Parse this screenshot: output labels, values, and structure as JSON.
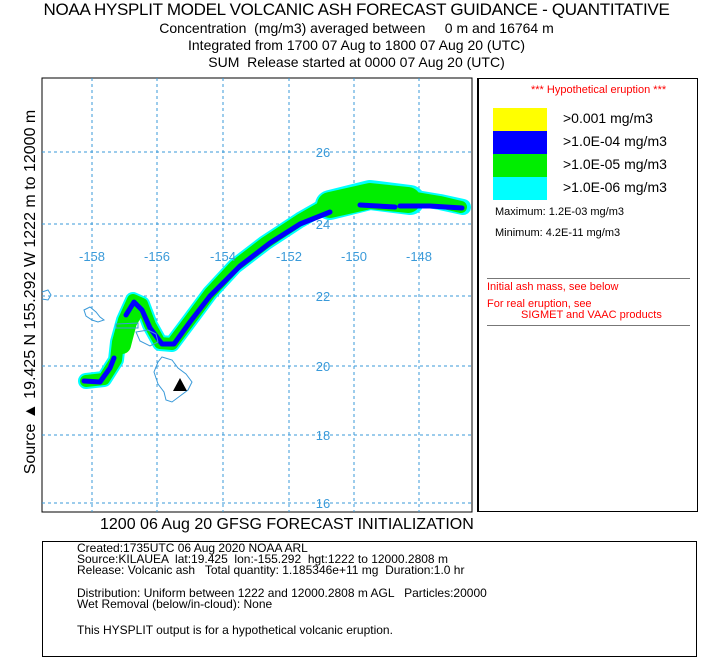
{
  "header": {
    "title": "NOAA HYSPLIT MODEL VOLCANIC ASH FORECAST GUIDANCE - QUANTITATIVE",
    "line1": "Concentration  (mg/m3) averaged between     0 m and 16764 m",
    "line2": "Integrated from 1700 07 Aug to 1800 07 Aug 20 (UTC)",
    "line3": "SUM  Release started at 0000 07 Aug 20 (UTC)"
  },
  "map": {
    "side_label": "Source ▲ 19.425 N 155.292 W 1222 m to 12000 m",
    "longitude_labels": [
      "-158",
      "-156",
      "-154",
      "-152",
      "-150",
      "-148"
    ],
    "latitude_labels": [
      "26",
      "24",
      "22",
      "20",
      "18",
      "16"
    ],
    "source_marker": "triangle-icon",
    "colors": {
      "grid": "#3a9ad9",
      "coast": "#3a9ad9"
    }
  },
  "legend": {
    "hypothetical": "*** Hypothetical eruption ***",
    "levels": [
      {
        "label": ">0.001 mg/m3",
        "color": "#ffff00"
      },
      {
        "label": ">1.0E-04 mg/m3",
        "color": "#0000ff"
      },
      {
        "label": ">1.0E-05 mg/m3",
        "color": "#00ee00"
      },
      {
        "label": ">1.0E-06 mg/m3",
        "color": "#00ffff"
      }
    ],
    "maximum": "Maximum: 1.2E-03 mg/m3",
    "minimum": "Minimum: 4.2E-11 mg/m3",
    "note1": "Initial ash mass, see below",
    "note2": "For real eruption, see",
    "note3": "SIGMET and VAAC products"
  },
  "footer": {
    "initialization": "1200 06 Aug 20 GFSG FORECAST INITIALIZATION",
    "created": "Created:1735UTC 06 Aug 2020 NOAA ARL",
    "source": "Source:KILAUEA  lat:19.425  lon:-155.292  hgt:1222 to 12000.2808 m",
    "release": "Release: Volcanic ash   Total quantity: 1.185346e+11 mg  Duration:1.0 hr",
    "distribution": "Distribution: Uniform between 1222 and 12000.2808 m AGL   Particles:20000",
    "wet_removal": "Wet Removal (below/in-cloud): None",
    "disclaimer": "This HYSPLIT output is for a hypothetical volcanic eruption."
  }
}
